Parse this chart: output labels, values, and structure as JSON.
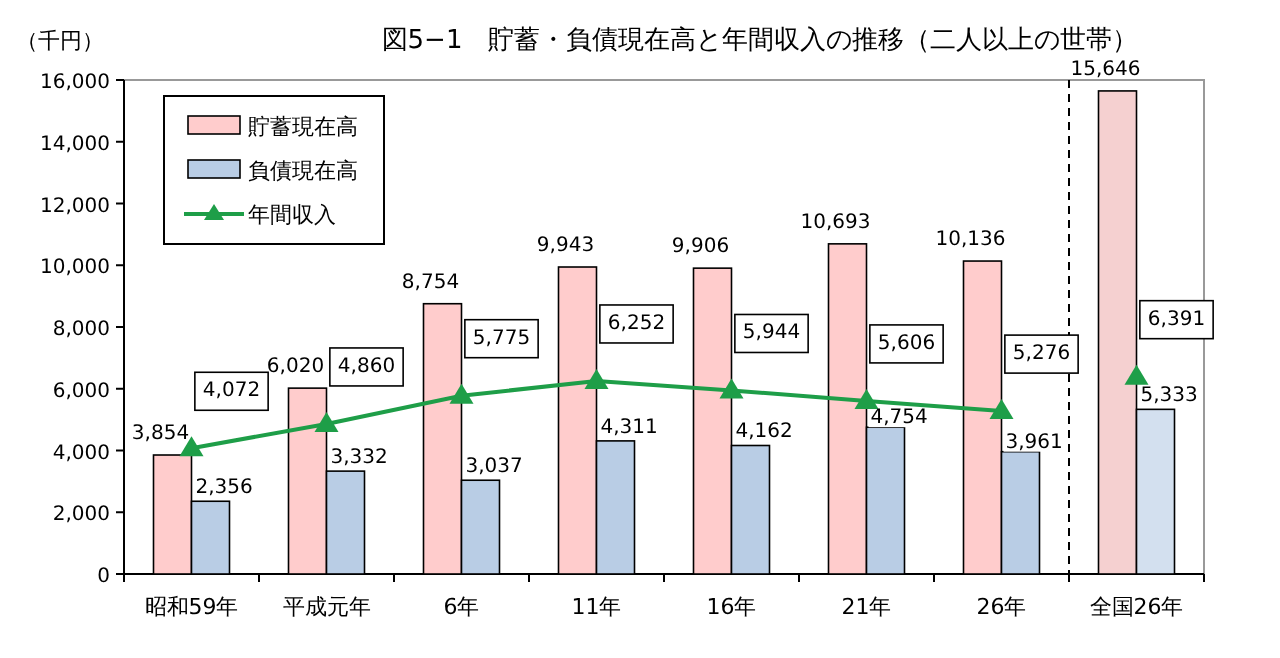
{
  "chart_data": {
    "type": "bar",
    "title": "図5−1　貯蓄・負債現在高と年間収入の推移（二人以上の世帯）",
    "ylabel": "（千円）",
    "categories": [
      "昭和59年",
      "平成元年",
      "6年",
      "11年",
      "16年",
      "21年",
      "26年",
      "全国26年"
    ],
    "ylim": [
      0,
      16000
    ],
    "yticks": [
      0,
      {
        "value": 2000,
        "label": "2,000"
      },
      {
        "value": 4000,
        "label": "4,000"
      },
      {
        "value": 6000,
        "label": "6,000"
      },
      {
        "value": 8000,
        "label": "8,000"
      },
      {
        "value": 10000,
        "label": "10,000"
      },
      {
        "value": 12000,
        "label": "12,000"
      },
      {
        "value": 14000,
        "label": "14,000"
      },
      {
        "value": 16000,
        "label": "16,000"
      }
    ],
    "grid": false,
    "legend": "top left",
    "series": [
      {
        "name": "貯蓄現在高",
        "color": "#ffcccc",
        "colors": [
          "#ffcccc",
          "#ffcccc",
          "#ffcccc",
          "#ffcccc",
          "#ffcccc",
          "#ffcccc",
          "#ffcccc",
          "#f5d0d0"
        ],
        "values": [
          3854,
          6020,
          8754,
          9943,
          9906,
          10693,
          10136,
          15646
        ],
        "value_labels": [
          "3,854",
          "6,020",
          "8,754",
          "9,943",
          "9,906",
          "10,693",
          "10,136",
          "15,646"
        ]
      },
      {
        "name": "負債現在高",
        "color": "#b9cde5",
        "colors": [
          "#b9cde5",
          "#b9cde5",
          "#b9cde5",
          "#b9cde5",
          "#b9cde5",
          "#b9cde5",
          "#b9cde5",
          "#d3e0ef"
        ],
        "values": [
          2356,
          3332,
          3037,
          4311,
          4162,
          4754,
          3961,
          5333
        ],
        "value_labels": [
          "2,356",
          "3,332",
          "3,037",
          "4,311",
          "4,162",
          "4,754",
          "3,961",
          "5,333"
        ]
      },
      {
        "name": "年間収入",
        "type": "line",
        "color": "#1e9e48",
        "marker": "triangle",
        "line_style": "solid",
        "x": [
          "昭和59年",
          "平成元年",
          "6年",
          "11年",
          "16年",
          "21年",
          "26年"
        ],
        "values": [
          4072,
          4860,
          5775,
          6252,
          5944,
          5606,
          5276
        ],
        "value_labels": [
          "4,072",
          "4,860",
          "5,775",
          "6,252",
          "5,944",
          "5,606",
          "5,276"
        ]
      },
      {
        "type": "scatter",
        "color": "#1e9e48",
        "marker": "triangle",
        "x": [
          "全国26年"
        ],
        "values": [
          6391
        ],
        "value_labels": [
          "6,391"
        ]
      }
    ]
  }
}
